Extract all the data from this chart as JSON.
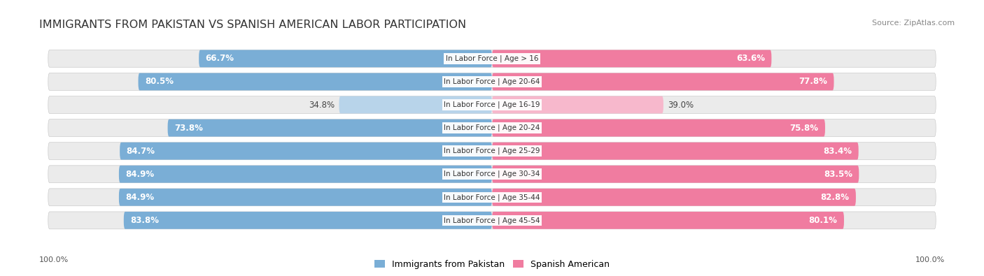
{
  "title": "IMMIGRANTS FROM PAKISTAN VS SPANISH AMERICAN LABOR PARTICIPATION",
  "source": "Source: ZipAtlas.com",
  "categories": [
    "In Labor Force | Age > 16",
    "In Labor Force | Age 20-64",
    "In Labor Force | Age 16-19",
    "In Labor Force | Age 20-24",
    "In Labor Force | Age 25-29",
    "In Labor Force | Age 30-34",
    "In Labor Force | Age 35-44",
    "In Labor Force | Age 45-54"
  ],
  "pakistan_values": [
    66.7,
    80.5,
    34.8,
    73.8,
    84.7,
    84.9,
    84.9,
    83.8
  ],
  "spanish_values": [
    63.6,
    77.8,
    39.0,
    75.8,
    83.4,
    83.5,
    82.8,
    80.1
  ],
  "pakistan_color_full": "#7aaed6",
  "pakistan_color_light": "#b8d4ea",
  "spanish_color_full": "#f07ca0",
  "spanish_color_light": "#f7b8cc",
  "row_bg_color": "#ebebeb",
  "label_fontsize": 8.5,
  "title_fontsize": 11.5,
  "legend_label_pakistan": "Immigrants from Pakistan",
  "legend_label_spanish": "Spanish American",
  "threshold": 50
}
